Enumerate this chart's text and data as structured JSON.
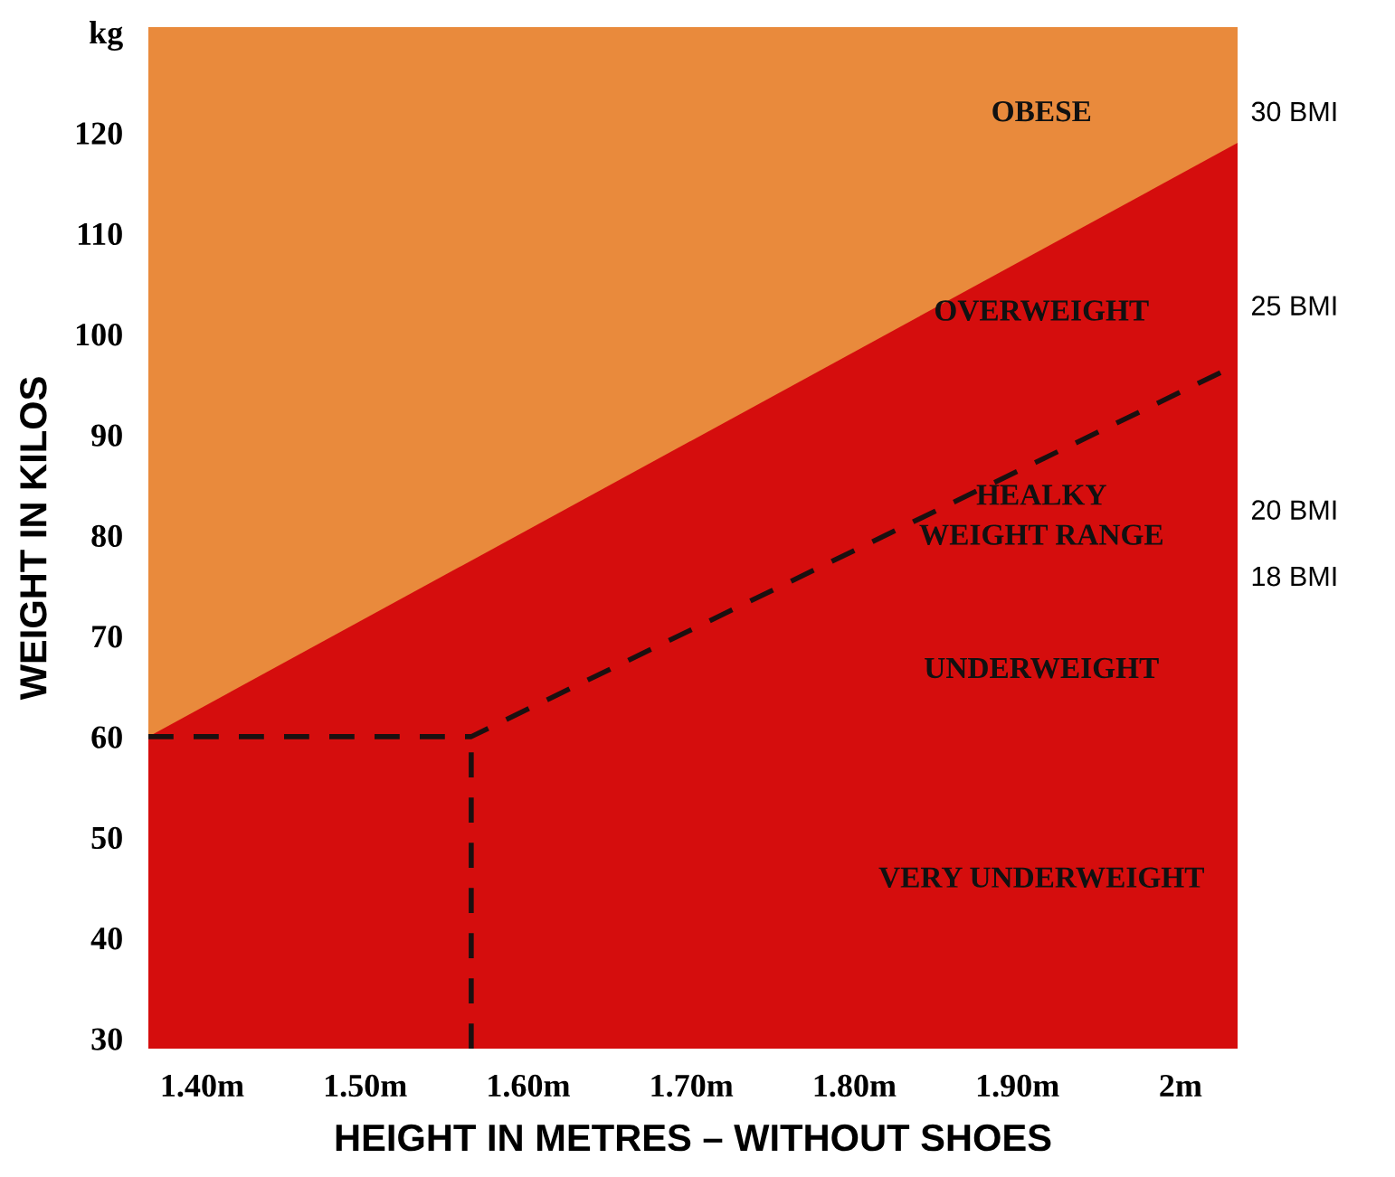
{
  "chart_data": {
    "type": "area",
    "xlabel": "HEIGHT IN METRES – WITHOUT SHOES",
    "ylabel": "WEIGHT IN KILOS",
    "xlim": [
      1.367,
      2.035
    ],
    "ylim": [
      29,
      130.5
    ],
    "xticks": [
      {
        "value": 1.4,
        "label": "1.40m"
      },
      {
        "value": 1.5,
        "label": "1.50m"
      },
      {
        "value": 1.6,
        "label": "1.60m"
      },
      {
        "value": 1.7,
        "label": "1.70m"
      },
      {
        "value": 1.8,
        "label": "1.80m"
      },
      {
        "value": 1.9,
        "label": "1.90m"
      },
      {
        "value": 2.0,
        "label": "2m"
      }
    ],
    "yticks": [
      30,
      40,
      50,
      60,
      70,
      80,
      90,
      100,
      110,
      120,
      {
        "value": 130,
        "label": "kg"
      }
    ],
    "bands": [
      {
        "axis": "y",
        "from": 29,
        "to": 130.5,
        "color": "#e98a3c"
      }
    ],
    "series": [
      {
        "color": "#d50d0d",
        "x": [
          1.367,
          2.035
        ],
        "values": [
          60,
          119
        ]
      },
      {
        "type": "line",
        "color": "#1a1010",
        "line_style": "dashed",
        "x": [
          1.367,
          1.565,
          2.035
        ],
        "values": [
          60,
          60,
          97
        ]
      },
      {
        "type": "line",
        "color": "#1a1010",
        "line_style": "dashed",
        "x": [
          1.565,
          1.565
        ],
        "values": [
          29,
          60
        ]
      }
    ],
    "annotations": [
      "OBESE",
      "OVERWEIGHT",
      "HEALKY\nWEIGHT RANGE",
      "UNDERWEIGHT",
      "VERY UNDERWEIGHT",
      "30 BMI",
      "25 BMI",
      "20 BMI",
      "18 BMI"
    ],
    "tick_labels": "xy",
    "grid": false,
    "legend": false
  }
}
